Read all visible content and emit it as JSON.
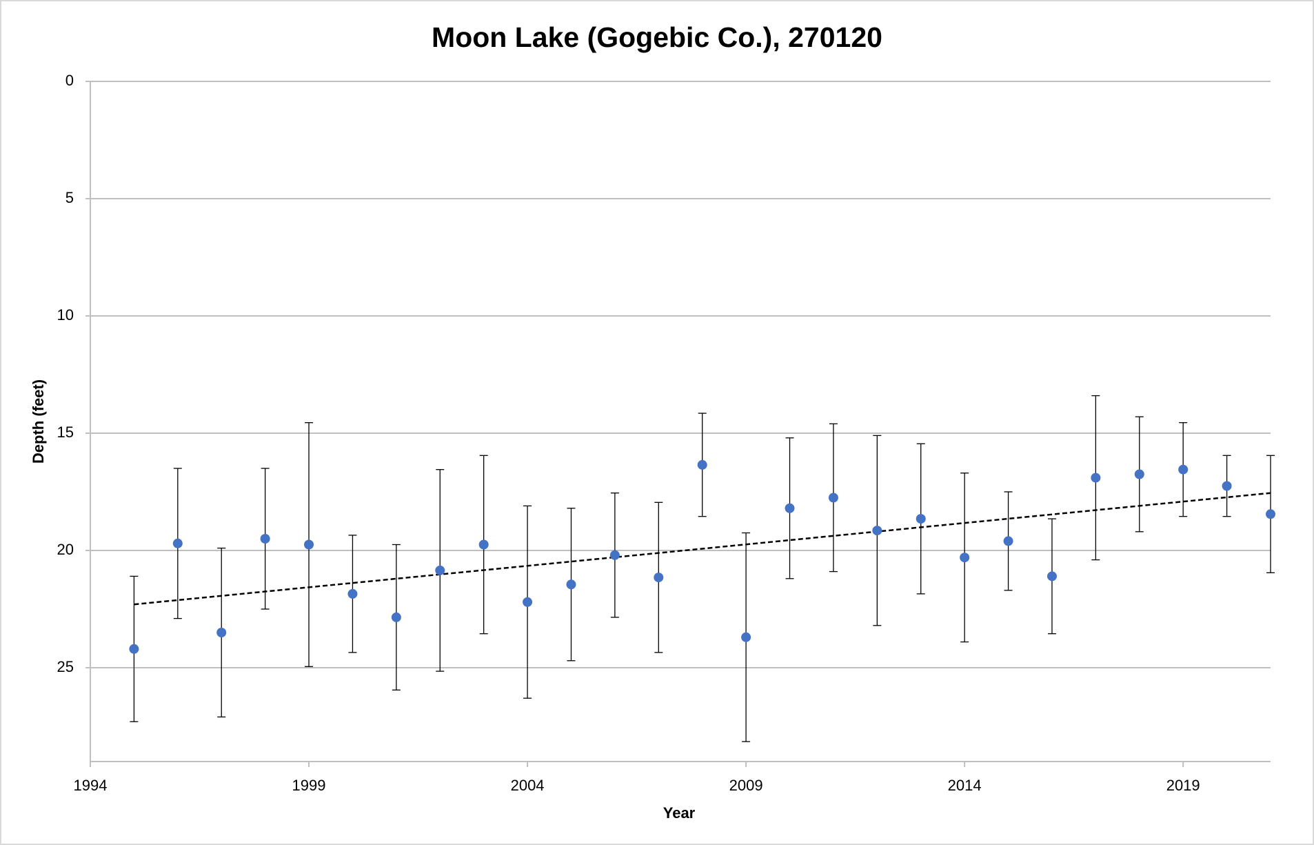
{
  "chart_data": {
    "type": "scatter",
    "title": "Moon Lake (Gogebic Co.), 270120",
    "x_label": "Year",
    "y_label": "Depth (feet)",
    "x": [
      1995,
      1996,
      1997,
      1998,
      1999,
      2000,
      2001,
      2002,
      2003,
      2004,
      2005,
      2006,
      2007,
      2008,
      2009,
      2010,
      2011,
      2012,
      2013,
      2014,
      2015,
      2016,
      2017,
      2018,
      2019,
      2020,
      2021
    ],
    "values": [
      24.2,
      19.7,
      23.5,
      19.5,
      19.75,
      21.85,
      22.85,
      20.85,
      19.75,
      22.2,
      21.45,
      20.2,
      21.15,
      16.35,
      23.7,
      18.2,
      17.75,
      19.15,
      18.65,
      20.3,
      19.6,
      21.1,
      16.9,
      16.75,
      16.55,
      17.25,
      18.45
    ],
    "errors": [
      3.1,
      3.2,
      3.6,
      3.0,
      5.2,
      2.5,
      3.1,
      4.3,
      3.8,
      4.1,
      3.25,
      2.65,
      3.2,
      2.2,
      4.45,
      3.0,
      3.15,
      4.05,
      3.2,
      3.6,
      2.1,
      2.45,
      3.5,
      2.45,
      2.0,
      1.3,
      2.5
    ],
    "color": "#4472c4",
    "trendline": {
      "x": [
        1995,
        2021
      ],
      "values": [
        22.3,
        17.55
      ],
      "color": "#000000",
      "style": "dashed"
    },
    "xlim": [
      1994,
      2021
    ],
    "xticks": [
      1994,
      1999,
      2004,
      2009,
      2014,
      2019
    ],
    "ylim": [
      0,
      29
    ],
    "yticks": [
      0,
      5,
      10,
      15,
      20,
      25
    ],
    "y_inverted": true,
    "grid": true
  }
}
